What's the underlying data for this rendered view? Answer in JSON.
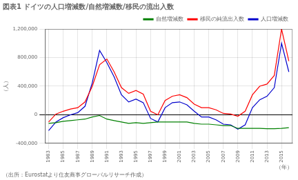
{
  "chart_data": {
    "type": "line",
    "title": "図表1 ドイツの人口増減数/自然増減数/移民の流出入数",
    "ylabel": "（人）",
    "xlabel": "（年）",
    "source": "（出所：Eurostatより住友商事グローバルリサーチ作成）",
    "x": [
      1983,
      1984,
      1985,
      1986,
      1987,
      1988,
      1989,
      1990,
      1991,
      1992,
      1993,
      1994,
      1995,
      1996,
      1997,
      1998,
      1999,
      2000,
      2001,
      2002,
      2003,
      2004,
      2005,
      2006,
      2007,
      2008,
      2009,
      2010,
      2011,
      2012,
      2013,
      2014,
      2015,
      2016
    ],
    "series": [
      {
        "name": "自然増減数",
        "color": "#008000",
        "values": [
          -120000,
          -110000,
          -90000,
          -80000,
          -70000,
          -60000,
          -30000,
          -10000,
          -60000,
          -80000,
          -100000,
          -120000,
          -110000,
          -120000,
          -110000,
          -100000,
          -100000,
          -100000,
          -100000,
          -100000,
          -120000,
          -130000,
          -130000,
          -140000,
          -150000,
          -150000,
          -190000,
          -190000,
          -190000,
          -190000,
          -195000,
          -195000,
          -190000,
          -180000
        ]
      },
      {
        "name": "移民の純流出入数",
        "color": "#ff0000",
        "values": [
          -100000,
          10000,
          50000,
          80000,
          100000,
          180000,
          400000,
          700000,
          780000,
          600000,
          380000,
          300000,
          340000,
          290000,
          50000,
          0,
          200000,
          260000,
          280000,
          240000,
          150000,
          100000,
          100000,
          70000,
          20000,
          10000,
          -20000,
          50000,
          280000,
          400000,
          430000,
          550000,
          1200000,
          750000
        ]
      },
      {
        "name": "人口増減数",
        "color": "#0000cc",
        "values": [
          -220000,
          -100000,
          -40000,
          0,
          30000,
          120000,
          450000,
          900000,
          730000,
          530000,
          280000,
          180000,
          220000,
          170000,
          -50000,
          -100000,
          100000,
          170000,
          180000,
          140000,
          50000,
          -30000,
          -30000,
          -70000,
          -130000,
          -140000,
          -200000,
          -140000,
          100000,
          210000,
          260000,
          380000,
          1000000,
          600000
        ]
      }
    ],
    "xlim": [
      1982.5,
      2016.5
    ],
    "xticks": [
      1983,
      1985,
      1987,
      1989,
      1991,
      1993,
      1995,
      1997,
      1999,
      2001,
      2003,
      2005,
      2007,
      2009,
      2011,
      2013,
      2015
    ],
    "ylim": [
      -400000,
      1200000
    ],
    "yticks": [
      {
        "value": -400000,
        "label": "-400,000"
      },
      0,
      {
        "value": 400000,
        "label": "400,000"
      },
      {
        "value": 800000,
        "label": "800,000"
      },
      {
        "value": 1200000,
        "label": "1,200,000"
      }
    ],
    "grid": true,
    "legend": "upper right"
  }
}
